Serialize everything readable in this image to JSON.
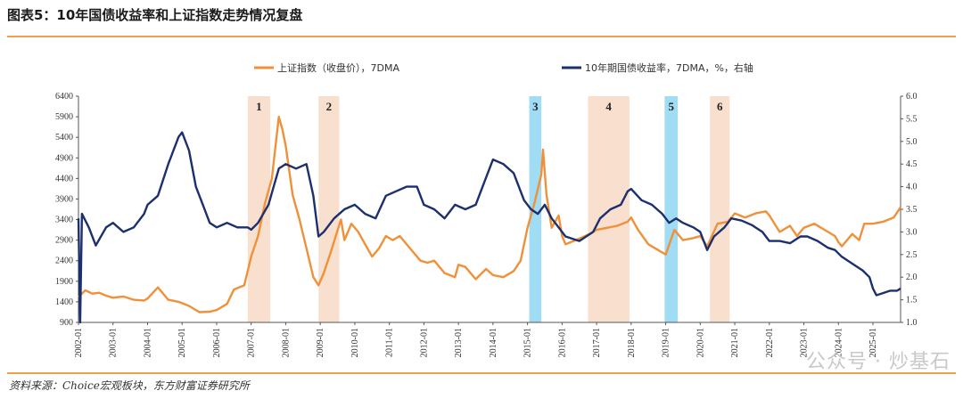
{
  "page": {
    "title": "图表5：10年国债收益率和上证指数走势情况复盘",
    "source": "资料来源：Choice宏观板块，东方财富证券研究所",
    "watermark": "公众号 · 炒基石"
  },
  "chart_data": {
    "type": "line",
    "title": "图表5：10年国债收益率和上证指数走势情况复盘",
    "xlabel": "",
    "ylabel_left": "",
    "ylabel_right": "",
    "x_ticks": [
      "2002-01",
      "2003-01",
      "2004-01",
      "2005-01",
      "2006-01",
      "2007-01",
      "2008-01",
      "2009-01",
      "2010-01",
      "2011-01",
      "2012-01",
      "2013-01",
      "2014-01",
      "2015-01",
      "2016-01",
      "2017-01",
      "2018-01",
      "2019-01",
      "2020-01",
      "2021-01",
      "2022-01",
      "2023-01",
      "2024-01",
      "2025-01"
    ],
    "left_axis": {
      "min": 900,
      "max": 6400,
      "ticks": [
        900,
        1400,
        1900,
        2400,
        2900,
        3400,
        3900,
        4400,
        4900,
        5400,
        5900,
        6400
      ]
    },
    "right_axis": {
      "min": 1.0,
      "max": 6.0,
      "ticks": [
        "1.0",
        "1.5",
        "2.0",
        "2.5",
        "3.0",
        "3.5",
        "4.0",
        "4.5",
        "5.0",
        "5.5",
        "6.0"
      ]
    },
    "x_range": [
      2002.0,
      2025.8
    ],
    "legend": {
      "position": "top",
      "items": [
        {
          "name": "上证指数（收盘价），7DMA",
          "color": "#f0913a"
        },
        {
          "name": "10年期国债收益率，7DMA，%，右轴",
          "color": "#1c2f6e"
        }
      ]
    },
    "series": [
      {
        "name": "上证指数（收盘价），7DMA",
        "axis": "left",
        "color": "#f0913a",
        "points": [
          [
            2002.0,
            1520
          ],
          [
            2002.2,
            1680
          ],
          [
            2002.4,
            1600
          ],
          [
            2002.6,
            1620
          ],
          [
            2002.8,
            1550
          ],
          [
            2003.0,
            1500
          ],
          [
            2003.3,
            1530
          ],
          [
            2003.6,
            1450
          ],
          [
            2003.9,
            1430
          ],
          [
            2004.0,
            1480
          ],
          [
            2004.3,
            1750
          ],
          [
            2004.6,
            1450
          ],
          [
            2004.9,
            1400
          ],
          [
            2005.2,
            1300
          ],
          [
            2005.5,
            1150
          ],
          [
            2005.8,
            1160
          ],
          [
            2006.0,
            1200
          ],
          [
            2006.3,
            1350
          ],
          [
            2006.5,
            1700
          ],
          [
            2006.8,
            1800
          ],
          [
            2007.0,
            2500
          ],
          [
            2007.2,
            3000
          ],
          [
            2007.4,
            3800
          ],
          [
            2007.6,
            4400
          ],
          [
            2007.8,
            5900
          ],
          [
            2007.9,
            5600
          ],
          [
            2008.0,
            5200
          ],
          [
            2008.2,
            4000
          ],
          [
            2008.4,
            3400
          ],
          [
            2008.6,
            2700
          ],
          [
            2008.8,
            2000
          ],
          [
            2008.95,
            1800
          ],
          [
            2009.1,
            2100
          ],
          [
            2009.3,
            2600
          ],
          [
            2009.6,
            3400
          ],
          [
            2009.7,
            2900
          ],
          [
            2009.9,
            3300
          ],
          [
            2010.1,
            3100
          ],
          [
            2010.3,
            2800
          ],
          [
            2010.5,
            2500
          ],
          [
            2010.7,
            2700
          ],
          [
            2010.9,
            3000
          ],
          [
            2011.1,
            2900
          ],
          [
            2011.3,
            3000
          ],
          [
            2011.6,
            2700
          ],
          [
            2011.9,
            2400
          ],
          [
            2012.1,
            2350
          ],
          [
            2012.3,
            2400
          ],
          [
            2012.6,
            2100
          ],
          [
            2012.9,
            2000
          ],
          [
            2013.0,
            2300
          ],
          [
            2013.2,
            2250
          ],
          [
            2013.5,
            1950
          ],
          [
            2013.8,
            2200
          ],
          [
            2014.0,
            2050
          ],
          [
            2014.3,
            2000
          ],
          [
            2014.6,
            2150
          ],
          [
            2014.8,
            2400
          ],
          [
            2015.0,
            3200
          ],
          [
            2015.2,
            3800
          ],
          [
            2015.4,
            4500
          ],
          [
            2015.45,
            5100
          ],
          [
            2015.55,
            4000
          ],
          [
            2015.7,
            3200
          ],
          [
            2015.9,
            3500
          ],
          [
            2016.0,
            3000
          ],
          [
            2016.1,
            2800
          ],
          [
            2016.4,
            2900
          ],
          [
            2016.8,
            3050
          ],
          [
            2017.0,
            3150
          ],
          [
            2017.3,
            3200
          ],
          [
            2017.6,
            3250
          ],
          [
            2017.9,
            3350
          ],
          [
            2018.0,
            3450
          ],
          [
            2018.2,
            3150
          ],
          [
            2018.5,
            2800
          ],
          [
            2018.8,
            2650
          ],
          [
            2019.0,
            2550
          ],
          [
            2019.25,
            3150
          ],
          [
            2019.5,
            2900
          ],
          [
            2019.8,
            2950
          ],
          [
            2020.0,
            3000
          ],
          [
            2020.2,
            2750
          ],
          [
            2020.5,
            3300
          ],
          [
            2020.8,
            3350
          ],
          [
            2021.0,
            3550
          ],
          [
            2021.3,
            3450
          ],
          [
            2021.6,
            3550
          ],
          [
            2021.9,
            3600
          ],
          [
            2022.0,
            3500
          ],
          [
            2022.3,
            3100
          ],
          [
            2022.6,
            3250
          ],
          [
            2022.8,
            3000
          ],
          [
            2023.0,
            3200
          ],
          [
            2023.3,
            3300
          ],
          [
            2023.6,
            3150
          ],
          [
            2023.9,
            3000
          ],
          [
            2024.0,
            2850
          ],
          [
            2024.1,
            2750
          ],
          [
            2024.4,
            3050
          ],
          [
            2024.6,
            2900
          ],
          [
            2024.75,
            3300
          ],
          [
            2025.0,
            3300
          ],
          [
            2025.3,
            3350
          ],
          [
            2025.6,
            3450
          ],
          [
            2025.8,
            3700
          ]
        ]
      },
      {
        "name": "10年期国债收益率，7DMA，%，右轴",
        "axis": "right",
        "color": "#1c2f6e",
        "points": [
          [
            2002.0,
            3.3
          ],
          [
            2002.05,
            1.0
          ],
          [
            2002.1,
            3.4
          ],
          [
            2002.3,
            3.1
          ],
          [
            2002.5,
            2.7
          ],
          [
            2002.8,
            3.1
          ],
          [
            2003.0,
            3.2
          ],
          [
            2003.3,
            3.0
          ],
          [
            2003.6,
            3.1
          ],
          [
            2003.9,
            3.4
          ],
          [
            2004.0,
            3.6
          ],
          [
            2004.3,
            3.8
          ],
          [
            2004.6,
            4.5
          ],
          [
            2004.9,
            5.1
          ],
          [
            2005.0,
            5.2
          ],
          [
            2005.2,
            4.8
          ],
          [
            2005.4,
            4.0
          ],
          [
            2005.6,
            3.6
          ],
          [
            2005.8,
            3.2
          ],
          [
            2006.0,
            3.1
          ],
          [
            2006.3,
            3.2
          ],
          [
            2006.6,
            3.1
          ],
          [
            2006.9,
            3.1
          ],
          [
            2007.0,
            3.05
          ],
          [
            2007.2,
            3.2
          ],
          [
            2007.5,
            3.6
          ],
          [
            2007.8,
            4.4
          ],
          [
            2008.0,
            4.5
          ],
          [
            2008.3,
            4.4
          ],
          [
            2008.6,
            4.5
          ],
          [
            2008.8,
            3.8
          ],
          [
            2008.95,
            2.9
          ],
          [
            2009.1,
            3.0
          ],
          [
            2009.4,
            3.3
          ],
          [
            2009.7,
            3.5
          ],
          [
            2010.0,
            3.6
          ],
          [
            2010.3,
            3.4
          ],
          [
            2010.6,
            3.3
          ],
          [
            2010.9,
            3.8
          ],
          [
            2011.2,
            3.9
          ],
          [
            2011.5,
            4.0
          ],
          [
            2011.8,
            4.0
          ],
          [
            2012.0,
            3.6
          ],
          [
            2012.3,
            3.5
          ],
          [
            2012.6,
            3.3
          ],
          [
            2012.9,
            3.6
          ],
          [
            2013.2,
            3.5
          ],
          [
            2013.5,
            3.6
          ],
          [
            2013.8,
            4.2
          ],
          [
            2014.0,
            4.6
          ],
          [
            2014.3,
            4.5
          ],
          [
            2014.6,
            4.3
          ],
          [
            2014.9,
            3.7
          ],
          [
            2015.1,
            3.5
          ],
          [
            2015.3,
            3.4
          ],
          [
            2015.5,
            3.6
          ],
          [
            2015.7,
            3.3
          ],
          [
            2015.9,
            3.1
          ],
          [
            2016.1,
            2.9
          ],
          [
            2016.5,
            2.8
          ],
          [
            2016.9,
            3.0
          ],
          [
            2017.1,
            3.3
          ],
          [
            2017.4,
            3.5
          ],
          [
            2017.7,
            3.6
          ],
          [
            2017.9,
            3.9
          ],
          [
            2018.0,
            3.95
          ],
          [
            2018.3,
            3.7
          ],
          [
            2018.6,
            3.6
          ],
          [
            2018.9,
            3.4
          ],
          [
            2019.1,
            3.2
          ],
          [
            2019.3,
            3.3
          ],
          [
            2019.5,
            3.2
          ],
          [
            2019.8,
            3.1
          ],
          [
            2020.0,
            3.0
          ],
          [
            2020.2,
            2.6
          ],
          [
            2020.4,
            2.9
          ],
          [
            2020.7,
            3.1
          ],
          [
            2020.9,
            3.3
          ],
          [
            2021.2,
            3.25
          ],
          [
            2021.5,
            3.15
          ],
          [
            2021.8,
            3.0
          ],
          [
            2022.0,
            2.8
          ],
          [
            2022.3,
            2.8
          ],
          [
            2022.6,
            2.75
          ],
          [
            2022.9,
            2.9
          ],
          [
            2023.1,
            2.9
          ],
          [
            2023.4,
            2.8
          ],
          [
            2023.7,
            2.65
          ],
          [
            2023.9,
            2.6
          ],
          [
            2024.1,
            2.45
          ],
          [
            2024.4,
            2.3
          ],
          [
            2024.7,
            2.15
          ],
          [
            2024.9,
            2.0
          ],
          [
            2025.0,
            1.75
          ],
          [
            2025.1,
            1.6
          ],
          [
            2025.3,
            1.65
          ],
          [
            2025.5,
            1.7
          ],
          [
            2025.7,
            1.7
          ],
          [
            2025.8,
            1.75
          ]
        ]
      }
    ],
    "shaded_periods": [
      {
        "label": "1",
        "start": 2006.9,
        "end": 2007.55,
        "color": "#f8d9c4"
      },
      {
        "label": "2",
        "start": 2008.95,
        "end": 2009.55,
        "color": "#f8d9c4"
      },
      {
        "label": "3",
        "start": 2015.05,
        "end": 2015.4,
        "color": "#8fd6f2"
      },
      {
        "label": "4",
        "start": 2016.75,
        "end": 2017.95,
        "color": "#f8d9c4"
      },
      {
        "label": "5",
        "start": 2018.97,
        "end": 2019.35,
        "color": "#8fd6f2"
      },
      {
        "label": "6",
        "start": 2020.28,
        "end": 2020.85,
        "color": "#f8d9c4"
      }
    ]
  }
}
